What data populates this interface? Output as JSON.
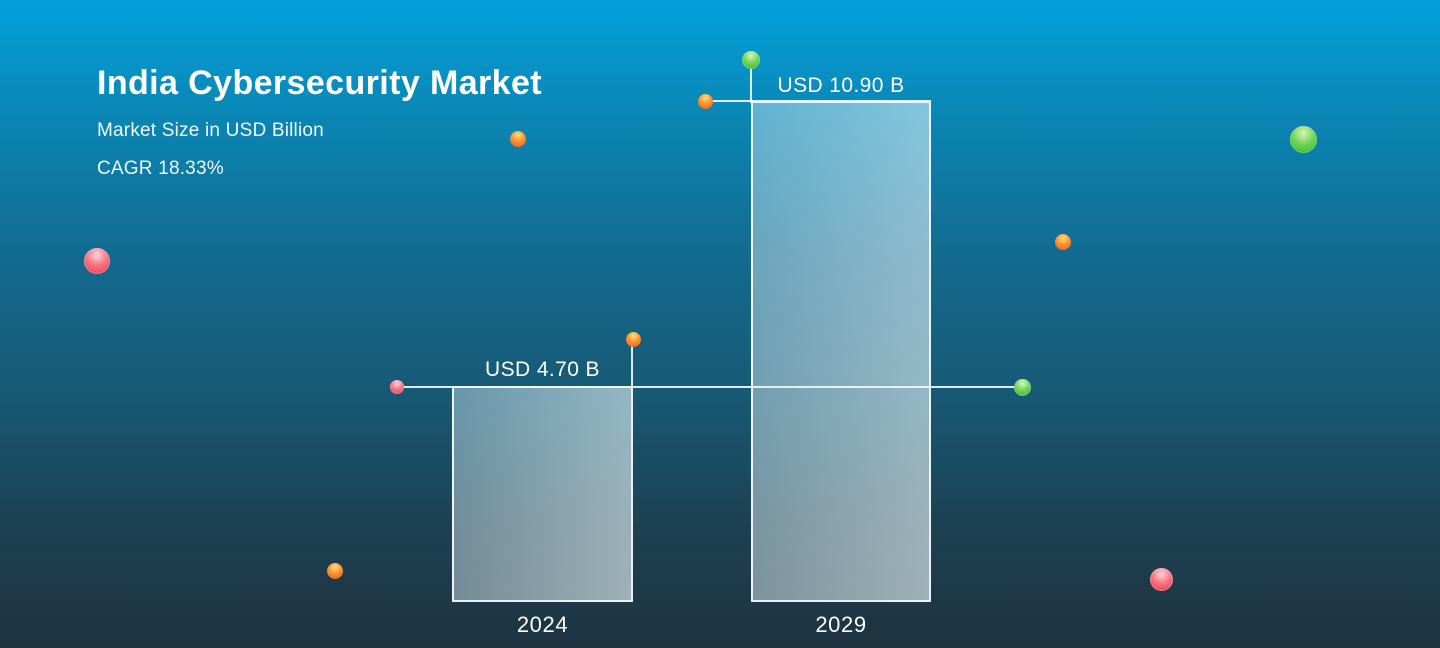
{
  "theme": {
    "bg-top": "#02a1dc",
    "bg-bottom": "#1e3340",
    "text-color": "#ffffff",
    "line-color": "#eef6f9",
    "dot-red": "#ee3448",
    "dot-orange": "#ef5a1c",
    "dot-green": "#2fb92f"
  },
  "header": {
    "title": "India Cybersecurity Market",
    "subtitle": "Market Size in USD Billion",
    "cagr": "CAGR 18.33%"
  },
  "chart_data": {
    "type": "bar",
    "title": "India Cybersecurity Market",
    "subtitle": "Market Size in USD Billion",
    "annotation": "CAGR 18.33%",
    "unit": "USD Billion",
    "categories": [
      "2024",
      "2029"
    ],
    "values": [
      4.7,
      10.9
    ],
    "value_labels": [
      "USD 4.70 B",
      "USD 10.90 B"
    ],
    "ylim": [
      0,
      10.9
    ],
    "grid": false,
    "legend": false
  }
}
